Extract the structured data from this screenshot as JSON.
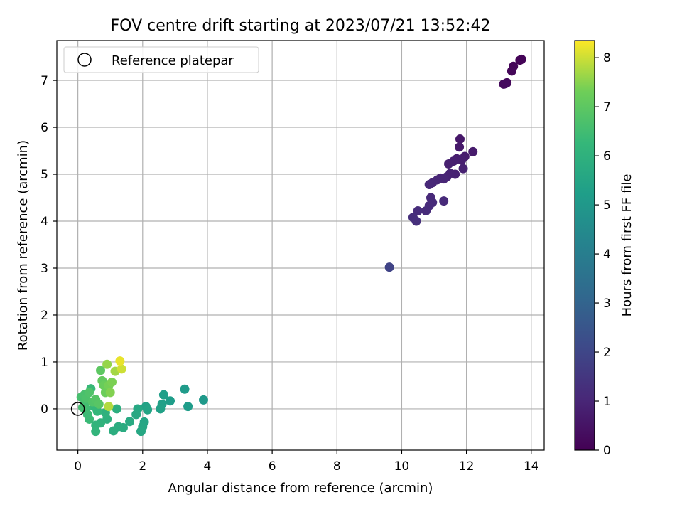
{
  "chart_data": {
    "type": "scatter",
    "title": "FOV centre drift starting at 2023/07/21 13:52:42",
    "xlabel": "Angular distance from reference (arcmin)",
    "ylabel": "Rotation from reference (arcmin)",
    "xlim": [
      -0.65,
      14.4
    ],
    "ylim": [
      -0.88,
      7.85
    ],
    "xticks": [
      0,
      2,
      4,
      6,
      8,
      10,
      12,
      14
    ],
    "yticks": [
      0,
      1,
      2,
      3,
      4,
      5,
      6,
      7
    ],
    "grid": true,
    "legend": {
      "position": "top-left",
      "entries": [
        "Reference platepar"
      ]
    },
    "reference_point": {
      "x": 0,
      "y": 0
    },
    "colorbar": {
      "label": "Hours from first FF file",
      "colormap": "viridis",
      "range": [
        0,
        8.35
      ],
      "ticks": [
        0,
        1,
        2,
        3,
        4,
        5,
        6,
        7,
        8
      ]
    },
    "points": [
      {
        "x": 13.65,
        "y": 7.43,
        "h": 0.05
      },
      {
        "x": 13.7,
        "y": 7.45,
        "h": 0.08
      },
      {
        "x": 13.45,
        "y": 7.3,
        "h": 0.12
      },
      {
        "x": 13.4,
        "y": 7.2,
        "h": 0.15
      },
      {
        "x": 13.25,
        "y": 6.95,
        "h": 0.2
      },
      {
        "x": 13.15,
        "y": 6.92,
        "h": 0.25
      },
      {
        "x": 13.2,
        "y": 6.93,
        "h": 0.28
      },
      {
        "x": 11.8,
        "y": 5.75,
        "h": 0.6
      },
      {
        "x": 11.78,
        "y": 5.58,
        "h": 0.65
      },
      {
        "x": 12.2,
        "y": 5.48,
        "h": 0.7
      },
      {
        "x": 11.95,
        "y": 5.38,
        "h": 0.72
      },
      {
        "x": 11.7,
        "y": 5.33,
        "h": 0.75
      },
      {
        "x": 11.85,
        "y": 5.3,
        "h": 0.78
      },
      {
        "x": 11.6,
        "y": 5.28,
        "h": 0.8
      },
      {
        "x": 11.45,
        "y": 5.22,
        "h": 0.82
      },
      {
        "x": 11.9,
        "y": 5.12,
        "h": 0.85
      },
      {
        "x": 11.65,
        "y": 5.0,
        "h": 0.88
      },
      {
        "x": 11.5,
        "y": 5.02,
        "h": 0.9
      },
      {
        "x": 11.4,
        "y": 4.95,
        "h": 0.92
      },
      {
        "x": 11.2,
        "y": 4.92,
        "h": 0.95
      },
      {
        "x": 11.1,
        "y": 4.88,
        "h": 0.98
      },
      {
        "x": 11.3,
        "y": 4.9,
        "h": 1.0
      },
      {
        "x": 10.95,
        "y": 4.82,
        "h": 1.02
      },
      {
        "x": 10.85,
        "y": 4.78,
        "h": 1.05
      },
      {
        "x": 10.9,
        "y": 4.5,
        "h": 1.08
      },
      {
        "x": 10.95,
        "y": 4.4,
        "h": 1.1
      },
      {
        "x": 11.3,
        "y": 4.43,
        "h": 1.12
      },
      {
        "x": 10.85,
        "y": 4.33,
        "h": 1.15
      },
      {
        "x": 10.75,
        "y": 4.22,
        "h": 1.18
      },
      {
        "x": 10.5,
        "y": 4.22,
        "h": 1.2
      },
      {
        "x": 10.35,
        "y": 4.08,
        "h": 1.25
      },
      {
        "x": 10.45,
        "y": 4.0,
        "h": 1.3
      },
      {
        "x": 9.62,
        "y": 3.02,
        "h": 1.9
      },
      {
        "x": 3.88,
        "y": 0.19,
        "h": 5.05
      },
      {
        "x": 3.3,
        "y": 0.42,
        "h": 5.1
      },
      {
        "x": 3.4,
        "y": 0.05,
        "h": 5.15
      },
      {
        "x": 2.85,
        "y": 0.17,
        "h": 5.2
      },
      {
        "x": 2.65,
        "y": 0.3,
        "h": 5.25
      },
      {
        "x": 2.6,
        "y": 0.1,
        "h": 5.3
      },
      {
        "x": 2.55,
        "y": 0.0,
        "h": 5.35
      },
      {
        "x": 2.1,
        "y": 0.05,
        "h": 5.4
      },
      {
        "x": 2.15,
        "y": -0.02,
        "h": 5.45
      },
      {
        "x": 2.05,
        "y": -0.28,
        "h": 5.5
      },
      {
        "x": 2.0,
        "y": -0.38,
        "h": 5.55
      },
      {
        "x": 1.95,
        "y": -0.48,
        "h": 5.6
      },
      {
        "x": 1.85,
        "y": 0.0,
        "h": 5.62
      },
      {
        "x": 1.8,
        "y": -0.12,
        "h": 5.65
      },
      {
        "x": 1.6,
        "y": -0.27,
        "h": 5.7
      },
      {
        "x": 1.4,
        "y": -0.4,
        "h": 5.75
      },
      {
        "x": 1.25,
        "y": -0.38,
        "h": 5.8
      },
      {
        "x": 1.1,
        "y": -0.47,
        "h": 5.85
      },
      {
        "x": 1.2,
        "y": 0.0,
        "h": 5.9
      },
      {
        "x": 0.9,
        "y": -0.22,
        "h": 5.95
      },
      {
        "x": 0.85,
        "y": -0.08,
        "h": 6.0
      },
      {
        "x": 0.7,
        "y": -0.3,
        "h": 6.05
      },
      {
        "x": 0.55,
        "y": -0.35,
        "h": 6.1
      },
      {
        "x": 0.55,
        "y": -0.48,
        "h": 6.15
      },
      {
        "x": 0.6,
        "y": -0.05,
        "h": 6.2
      },
      {
        "x": 0.5,
        "y": 0.05,
        "h": 6.25
      },
      {
        "x": 0.4,
        "y": 0.43,
        "h": 6.3
      },
      {
        "x": 0.35,
        "y": -0.22,
        "h": 6.35
      },
      {
        "x": 0.3,
        "y": -0.12,
        "h": 6.4
      },
      {
        "x": 0.25,
        "y": 0.0,
        "h": 6.45
      },
      {
        "x": 0.2,
        "y": 0.08,
        "h": 6.5
      },
      {
        "x": 0.15,
        "y": 0.03,
        "h": 6.55
      },
      {
        "x": 0.1,
        "y": 0.25,
        "h": 6.6
      },
      {
        "x": 0.2,
        "y": 0.3,
        "h": 6.65
      },
      {
        "x": 0.25,
        "y": 0.22,
        "h": 6.7
      },
      {
        "x": 0.35,
        "y": 0.35,
        "h": 6.75
      },
      {
        "x": 0.45,
        "y": 0.15,
        "h": 6.8
      },
      {
        "x": 0.55,
        "y": 0.2,
        "h": 6.85
      },
      {
        "x": 0.65,
        "y": 0.1,
        "h": 6.9
      },
      {
        "x": 0.7,
        "y": 0.82,
        "h": 7.0
      },
      {
        "x": 0.75,
        "y": 0.6,
        "h": 7.1
      },
      {
        "x": 0.8,
        "y": 0.5,
        "h": 7.2
      },
      {
        "x": 0.85,
        "y": 0.35,
        "h": 7.25
      },
      {
        "x": 0.95,
        "y": 0.5,
        "h": 7.35
      },
      {
        "x": 1.05,
        "y": 0.57,
        "h": 7.4
      },
      {
        "x": 1.0,
        "y": 0.35,
        "h": 7.45
      },
      {
        "x": 0.9,
        "y": 0.95,
        "h": 7.6
      },
      {
        "x": 1.15,
        "y": 0.8,
        "h": 7.7
      },
      {
        "x": 0.95,
        "y": 0.05,
        "h": 7.8
      },
      {
        "x": 1.35,
        "y": 0.85,
        "h": 8.0
      },
      {
        "x": 1.3,
        "y": 1.02,
        "h": 8.2
      }
    ]
  }
}
